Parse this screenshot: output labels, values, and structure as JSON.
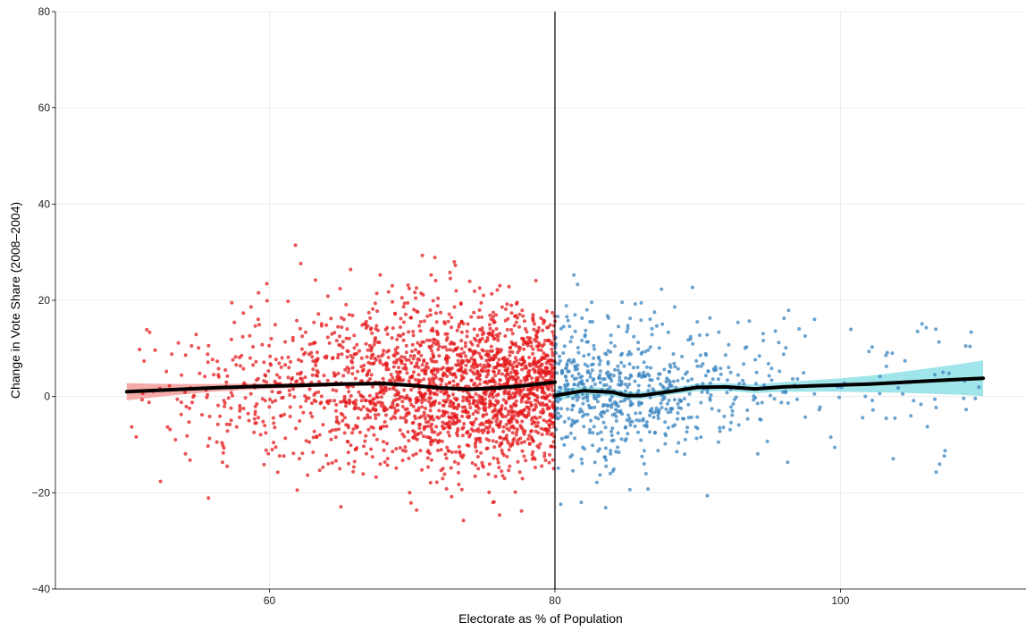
{
  "chart_data": {
    "type": "scatter",
    "xlabel": "Electorate as % of Population",
    "ylabel": "Change in Vote Share (2008–2004)",
    "xlim": [
      45,
      113
    ],
    "ylim": [
      -40,
      80
    ],
    "x_ticks": [
      60,
      80,
      100
    ],
    "y_ticks": [
      -40,
      -20,
      0,
      20,
      40,
      60,
      80
    ],
    "grid": true,
    "threshold_x": 80,
    "colors": {
      "left_points": "#e41a1c",
      "right_points": "#3a84bf",
      "left_band": "#f4a3a0",
      "right_band": "#8fe0e6",
      "smooth_line": "#000000",
      "threshold_line": "#000000"
    },
    "series": [
      {
        "side": "left",
        "x_range": [
          50,
          80
        ],
        "point_count": 2200,
        "smooth": {
          "x": [
            50,
            53,
            56,
            59,
            62,
            65,
            68,
            70,
            72,
            74,
            76,
            78,
            80
          ],
          "y": [
            1.0,
            1.4,
            1.8,
            2.1,
            2.3,
            2.6,
            2.7,
            2.3,
            1.8,
            1.5,
            1.8,
            2.3,
            3.0
          ]
        },
        "band_halfwidth": [
          1.8,
          1.2,
          0.8,
          0.6,
          0.5,
          0.4,
          0.4,
          0.4,
          0.4,
          0.4,
          0.5,
          0.6,
          0.8
        ]
      },
      {
        "side": "right",
        "x_range": [
          80,
          110
        ],
        "point_count": 700,
        "smooth": {
          "x": [
            80,
            82,
            84,
            85,
            86,
            88,
            90,
            92,
            94,
            96,
            98,
            100,
            102,
            104,
            106,
            108,
            110
          ],
          "y": [
            0.2,
            1.2,
            0.9,
            0.2,
            0.2,
            1.0,
            1.9,
            2.0,
            1.6,
            2.0,
            2.2,
            2.4,
            2.6,
            2.9,
            3.2,
            3.5,
            3.8
          ]
        },
        "band_halfwidth": [
          1.2,
          0.9,
          0.8,
          0.8,
          0.8,
          0.7,
          0.8,
          0.8,
          0.9,
          1.0,
          1.2,
          1.4,
          1.7,
          2.1,
          2.6,
          3.1,
          3.7
        ]
      }
    ]
  }
}
